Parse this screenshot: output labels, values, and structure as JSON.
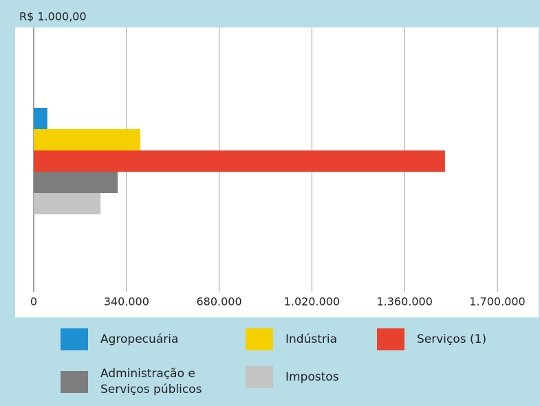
{
  "chart_data": {
    "type": "hbar",
    "xlabel": "R$ 1.000,00",
    "categories": [
      null
    ],
    "series": [
      {
        "name": "Agropecuária",
        "color": "#1e8fd0",
        "values": [
          50000
        ]
      },
      {
        "name": "Indústria",
        "color": "#f5d000",
        "values": [
          391000
        ]
      },
      {
        "name": "Serviços (1)",
        "color": "#e8412f",
        "values": [
          1508000
        ]
      },
      {
        "name": "Administração e Serviços públicos",
        "color": "#7d7d7d",
        "values": [
          308000
        ]
      },
      {
        "name": "Impostos",
        "color": "#c4c4c4",
        "values": [
          245000
        ]
      }
    ],
    "xlim": [
      0,
      1700000
    ],
    "xticks": [
      0,
      {
        "value": 340000,
        "label": "340.000"
      },
      {
        "value": 680000,
        "label": "680.000"
      },
      {
        "value": 1020000,
        "label": "1.020.000"
      },
      {
        "value": 1360000,
        "label": "1.360.000"
      },
      {
        "value": 1700000,
        "label": "1.700.000"
      }
    ],
    "grid": true
  }
}
